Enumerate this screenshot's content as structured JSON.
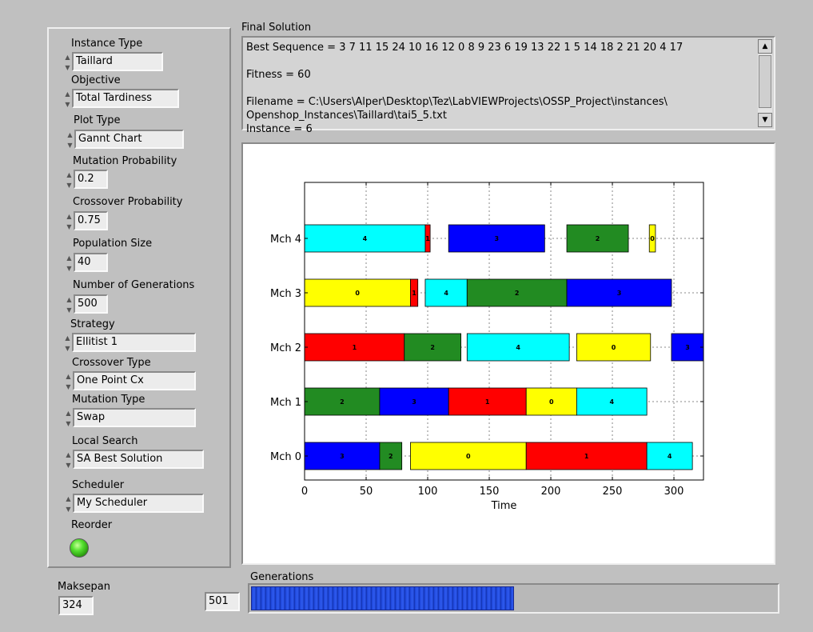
{
  "controls": [
    {
      "label": "Instance Type",
      "value": "Taillard"
    },
    {
      "label": "Objective",
      "value": "Total Tardiness"
    },
    {
      "label": "Plot Type",
      "value": "Gannt Chart"
    },
    {
      "label": "Mutation Probability",
      "value": "0.2"
    },
    {
      "label": "Crossover Probability",
      "value": "0.75"
    },
    {
      "label": "Population Size",
      "value": "40"
    },
    {
      "label": "Number of Generations",
      "value": "500"
    },
    {
      "label": "Strategy",
      "value": "Ellitist 1"
    },
    {
      "label": "Crossover Type",
      "value": "One Point Cx"
    },
    {
      "label": "Mutation Type",
      "value": "Swap"
    },
    {
      "label": "Local Search",
      "value": "SA Best Solution"
    },
    {
      "label": "Scheduler",
      "value": "My Scheduler"
    }
  ],
  "reorder": {
    "label": "Reorder",
    "state": "on",
    "led_color": "#4fdc2a"
  },
  "final_solution": {
    "label": "Final Solution",
    "text": "Best Sequence = 3 7 11 15 24 10 16 12 0 8 9 23 6 19 13 22 1 5 14 18 2 21 20 4 17\n\nFitness = 60\n\nFilename = C:\\Users\\Alper\\Desktop\\Tez\\LabVIEWProjects\\OSSP_Project\\instances\\\nOpenshop_Instances\\Taillard\\tai5_5.txt\nInstance = 6"
  },
  "generations": {
    "label": "Generations",
    "count": "501",
    "progress": 0.5,
    "fill_color": "#1d45d8"
  },
  "makespan": {
    "label": "Maksepan",
    "value": "324"
  },
  "chart_data": {
    "type": "gantt",
    "xlabel": "Time",
    "xlim": [
      0,
      324
    ],
    "xticks": [
      0,
      50,
      100,
      150,
      200,
      250,
      300
    ],
    "grid": true,
    "rows": [
      "Mch 0",
      "Mch 1",
      "Mch 2",
      "Mch 3",
      "Mch 4"
    ],
    "job_colors": {
      "0": "#ffff00",
      "1": "#ff0000",
      "2": "#228b22",
      "3": "#0000ff",
      "4": "#00ffff"
    },
    "tasks": [
      {
        "machine": 4,
        "job": "4",
        "start": 0,
        "end": 98
      },
      {
        "machine": 4,
        "job": "1",
        "start": 98,
        "end": 102
      },
      {
        "machine": 4,
        "job": "3",
        "start": 117,
        "end": 195
      },
      {
        "machine": 4,
        "job": "2",
        "start": 213,
        "end": 263
      },
      {
        "machine": 4,
        "job": "0",
        "start": 280,
        "end": 285
      },
      {
        "machine": 3,
        "job": "0",
        "start": 0,
        "end": 86
      },
      {
        "machine": 3,
        "job": "1",
        "start": 86,
        "end": 92
      },
      {
        "machine": 3,
        "job": "4",
        "start": 98,
        "end": 132
      },
      {
        "machine": 3,
        "job": "2",
        "start": 132,
        "end": 213
      },
      {
        "machine": 3,
        "job": "3",
        "start": 213,
        "end": 298
      },
      {
        "machine": 2,
        "job": "1",
        "start": 0,
        "end": 81
      },
      {
        "machine": 2,
        "job": "2",
        "start": 81,
        "end": 127
      },
      {
        "machine": 2,
        "job": "4",
        "start": 132,
        "end": 215
      },
      {
        "machine": 2,
        "job": "0",
        "start": 221,
        "end": 281
      },
      {
        "machine": 2,
        "job": "3",
        "start": 298,
        "end": 324
      },
      {
        "machine": 1,
        "job": "2",
        "start": 0,
        "end": 61
      },
      {
        "machine": 1,
        "job": "3",
        "start": 61,
        "end": 117
      },
      {
        "machine": 1,
        "job": "1",
        "start": 117,
        "end": 180
      },
      {
        "machine": 1,
        "job": "0",
        "start": 180,
        "end": 221
      },
      {
        "machine": 1,
        "job": "4",
        "start": 221,
        "end": 278
      },
      {
        "machine": 0,
        "job": "3",
        "start": 0,
        "end": 61
      },
      {
        "machine": 0,
        "job": "2",
        "start": 61,
        "end": 79
      },
      {
        "machine": 0,
        "job": "0",
        "start": 86,
        "end": 180
      },
      {
        "machine": 0,
        "job": "1",
        "start": 180,
        "end": 278
      },
      {
        "machine": 0,
        "job": "4",
        "start": 278,
        "end": 315
      }
    ]
  }
}
